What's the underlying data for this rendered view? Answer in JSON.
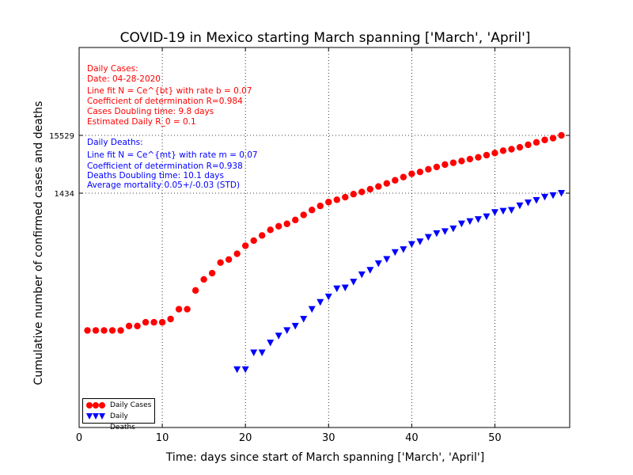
{
  "chart_data": {
    "type": "scatter",
    "title": "COVID-19 in Mexico starting March spanning ['March', 'April']",
    "xlabel": "Time: days since start of March spanning ['March', 'April']",
    "ylabel": "Cumulative number of confirmed cases and deaths",
    "xlim": [
      0,
      59
    ],
    "yscale": "log",
    "x_ticks": [
      0,
      10,
      20,
      30,
      40,
      50
    ],
    "y_ticks": [
      1434,
      15529
    ],
    "grid": "dotted",
    "legend_placement": "lower-left",
    "series": [
      {
        "name": "Daily Cases",
        "color": "#ff0000",
        "marker": "circle",
        "x": [
          1,
          2,
          3,
          4,
          5,
          6,
          7,
          8,
          9,
          10,
          11,
          12,
          13,
          14,
          15,
          16,
          17,
          18,
          19,
          20,
          21,
          22,
          23,
          24,
          25,
          26,
          27,
          28,
          29,
          30,
          31,
          32,
          33,
          34,
          35,
          36,
          37,
          38,
          39,
          40,
          41,
          42,
          43,
          44,
          45,
          46,
          47,
          48,
          49,
          50,
          51,
          52,
          53,
          54,
          55,
          56,
          57,
          58
        ],
        "y": [
          5,
          5,
          5,
          5,
          5,
          6,
          6,
          7,
          7,
          7,
          8,
          12,
          12,
          26,
          41,
          53,
          82,
          93,
          118,
          164,
          203,
          251,
          316,
          367,
          405,
          475,
          585,
          717,
          848,
          993,
          1094,
          1215,
          1378,
          1510,
          1688,
          1890,
          2143,
          2439,
          2785,
          3181,
          3441,
          3844,
          4219,
          4661,
          5014,
          5399,
          5847,
          6297,
          6875,
          7497,
          8261,
          8772,
          9501,
          10544,
          11633,
          12872,
          13842,
          15529
        ]
      },
      {
        "name": "Daily Deaths",
        "color": "#0000ff",
        "marker": "triangle-down",
        "x": [
          19,
          20,
          21,
          22,
          23,
          24,
          25,
          26,
          27,
          28,
          29,
          30,
          31,
          32,
          33,
          34,
          35,
          36,
          37,
          38,
          39,
          40,
          41,
          42,
          43,
          44,
          45,
          46,
          47,
          48,
          49,
          50,
          51,
          52,
          53,
          54,
          55,
          56,
          57,
          58
        ],
        "y": [
          1,
          1,
          2,
          2,
          3,
          4,
          5,
          6,
          8,
          12,
          16,
          20,
          28,
          29,
          37,
          50,
          60,
          79,
          94,
          125,
          141,
          174,
          194,
          233,
          273,
          296,
          332,
          406,
          449,
          486,
          546,
          650,
          686,
          712,
          857,
          970,
          1069,
          1221,
          1305,
          1434
        ]
      }
    ]
  },
  "annotations": {
    "cases": {
      "heading": "Daily Cases:",
      "date": "Date: 04-28-2020",
      "fit": "Line fit N = Ce^{bt} with rate b = 0.07",
      "r2": "Coefficient of determination R=0.984",
      "doubling": "Cases Doubling time: 9.8 days",
      "r0": "Estimated Daily R_0 = 0.1"
    },
    "deaths": {
      "heading": "Daily Deaths:",
      "fit": "Line fit N = Ce^{mt} with rate m = 0.07",
      "r2": "Coefficient of determination R=0.938",
      "doubling": "Deaths Doubling time: 10.1 days",
      "mortality": "Average mortality 0.05+/-0.03 (STD)"
    }
  },
  "legend": {
    "cases_label": "Daily Cases",
    "deaths_label": "Daily Deaths"
  },
  "colors": {
    "cases": "#ff0000",
    "deaths": "#0000ff",
    "axes": "#000000"
  }
}
